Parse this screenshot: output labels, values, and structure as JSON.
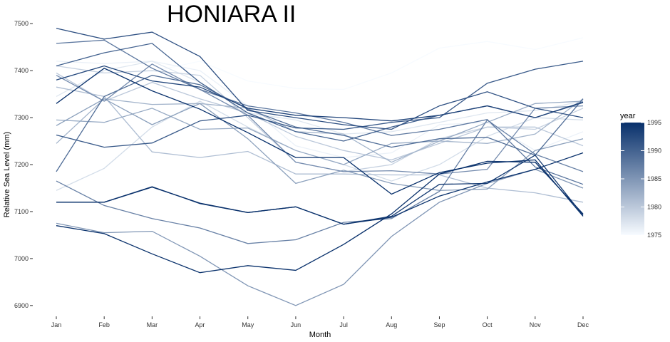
{
  "chart_data": {
    "type": "line",
    "title": "HONIARA II",
    "xlabel": "Month",
    "ylabel": "Relative Sea Level (mm)",
    "categories": [
      "Jan",
      "Feb",
      "Mar",
      "Apr",
      "May",
      "Jun",
      "Jul",
      "Aug",
      "Sep",
      "Oct",
      "Nov",
      "Dec"
    ],
    "yticks": [
      6900,
      7000,
      7100,
      7200,
      7300,
      7400,
      7500
    ],
    "ylim": [
      6880,
      7520
    ],
    "grid": false,
    "legend": {
      "title": "year",
      "placement": "right",
      "ticks": [
        1975,
        1980,
        1985,
        1990,
        1995
      ],
      "range": [
        1975,
        1995
      ],
      "color_low": "#f7fbff",
      "color_high": "#08306b"
    },
    "series": [
      {
        "year": 1975,
        "values": [
          7385,
          7395,
          7398,
          7420,
          7378,
          7362,
          7360,
          7395,
          7448,
          7462,
          7445,
          7470
        ]
      },
      {
        "year": 1976,
        "values": [
          7420,
          7415,
          7420,
          7400,
          7325,
          7240,
          7215,
          7225,
          7285,
          7290,
          7230,
          7270
        ]
      },
      {
        "year": 1977,
        "values": [
          7345,
          7400,
          7420,
          7375,
          7310,
          7295,
          7265,
          7270,
          7290,
          7310,
          7315,
          7335
        ]
      },
      {
        "year": 1978,
        "values": [
          7145,
          7192,
          7280,
          7335,
          7280,
          7230,
          7200,
          7165,
          7200,
          7260,
          7300,
          7295
        ]
      },
      {
        "year": 1979,
        "values": [
          7410,
          7395,
          7400,
          7390,
          7300,
          7205,
          7185,
          7200,
          7255,
          7280,
          7275,
          7320
        ]
      },
      {
        "year": 1980,
        "values": [
          7395,
          7335,
          7375,
          7340,
          7310,
          7260,
          7230,
          7210,
          7245,
          7280,
          7280,
          7240
        ]
      },
      {
        "year": 1981,
        "values": [
          7365,
          7345,
          7227,
          7215,
          7228,
          7180,
          7180,
          7178,
          7178,
          7150,
          7140,
          7120
        ]
      },
      {
        "year": 1982,
        "values": [
          7245,
          7340,
          7328,
          7330,
          7320,
          7270,
          7265,
          7205,
          7250,
          7245,
          7265,
          7340
        ]
      },
      {
        "year": 1983,
        "values": [
          7295,
          7290,
          7320,
          7275,
          7278,
          7230,
          7200,
          7245,
          7250,
          7290,
          7330,
          7335
        ]
      },
      {
        "year": 1984,
        "values": [
          7283,
          7340,
          7285,
          7330,
          7255,
          7160,
          7188,
          7160,
          7145,
          7148,
          7230,
          7255
        ]
      },
      {
        "year": 1985,
        "values": [
          7075,
          7055,
          7058,
          7005,
          6942,
          6900,
          6945,
          7047,
          7120,
          7160,
          7190,
          7150
        ]
      },
      {
        "year": 1986,
        "values": [
          7390,
          7335,
          7414,
          7360,
          7305,
          7205,
          7185,
          7187,
          7180,
          7190,
          7320,
          7325
        ]
      },
      {
        "year": 1987,
        "values": [
          7165,
          7113,
          7085,
          7065,
          7032,
          7040,
          7077,
          7085,
          7143,
          7295,
          7222,
          7185
        ]
      },
      {
        "year": 1988,
        "values": [
          7458,
          7465,
          7405,
          7360,
          7325,
          7310,
          7290,
          7262,
          7275,
          7296,
          7195,
          7158
        ]
      },
      {
        "year": 1989,
        "values": [
          7185,
          7345,
          7390,
          7370,
          7318,
          7280,
          7262,
          7237,
          7255,
          7258,
          7220,
          7340
        ]
      },
      {
        "year": 1990,
        "values": [
          7410,
          7438,
          7458,
          7375,
          7310,
          7270,
          7250,
          7280,
          7305,
          7325,
          7300,
          7332
        ]
      },
      {
        "year": 1991,
        "values": [
          7263,
          7237,
          7246,
          7293,
          7305,
          7278,
          7275,
          7290,
          7300,
          7373,
          7403,
          7420
        ]
      },
      {
        "year": 1992,
        "values": [
          7490,
          7467,
          7482,
          7430,
          7315,
          7300,
          7285,
          7275,
          7325,
          7355,
          7320,
          7300
        ]
      },
      {
        "year": 1993,
        "values": [
          7380,
          7410,
          7378,
          7365,
          7320,
          7305,
          7300,
          7293,
          7305,
          7325,
          7300,
          7333
        ]
      },
      {
        "year": 1994,
        "values": [
          7120,
          7120,
          7153,
          7117,
          7098,
          7110,
          7073,
          7090,
          7158,
          7160,
          7220,
          7092
        ]
      },
      {
        "year": 1995,
        "values": [
          7070,
          7053,
          7010,
          6970,
          6985,
          6975,
          7030,
          7095,
          7180,
          7207,
          7205,
          7095
        ]
      },
      {
        "year": 1995,
        "values": [
          7330,
          7405,
          7357,
          7318,
          7268,
          7215,
          7215,
          7137,
          7183,
          7203,
          7210,
          7090
        ]
      },
      {
        "year": 1995,
        "values": [
          7120,
          7120,
          7152,
          7118,
          7098,
          7110,
          7073,
          7088,
          7133,
          7163,
          7190,
          7225
        ]
      }
    ]
  }
}
